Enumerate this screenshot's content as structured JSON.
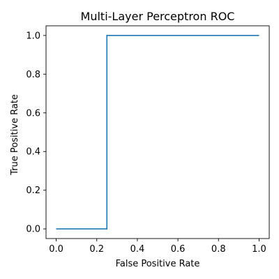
{
  "chart_data": {
    "type": "line",
    "title": "Multi-Layer Perceptron ROC",
    "xlabel": "False Positive Rate",
    "ylabel": "True Positive Rate",
    "xlim": [
      -0.05,
      1.05
    ],
    "ylim": [
      -0.05,
      1.05
    ],
    "xticks": [
      0.0,
      0.2,
      0.4,
      0.6,
      0.8,
      1.0
    ],
    "yticks": [
      0.0,
      0.2,
      0.4,
      0.6,
      0.8,
      1.0
    ],
    "xtick_labels": [
      "0.0",
      "0.2",
      "0.4",
      "0.6",
      "0.8",
      "1.0"
    ],
    "ytick_labels": [
      "0.0",
      "0.2",
      "0.4",
      "0.6",
      "0.8",
      "1.0"
    ],
    "grid": false,
    "series": [
      {
        "color": "#1f77b4",
        "x": [
          0.0,
          0.25,
          0.25,
          1.0
        ],
        "y": [
          0.0,
          0.0,
          1.0,
          1.0
        ]
      }
    ]
  }
}
